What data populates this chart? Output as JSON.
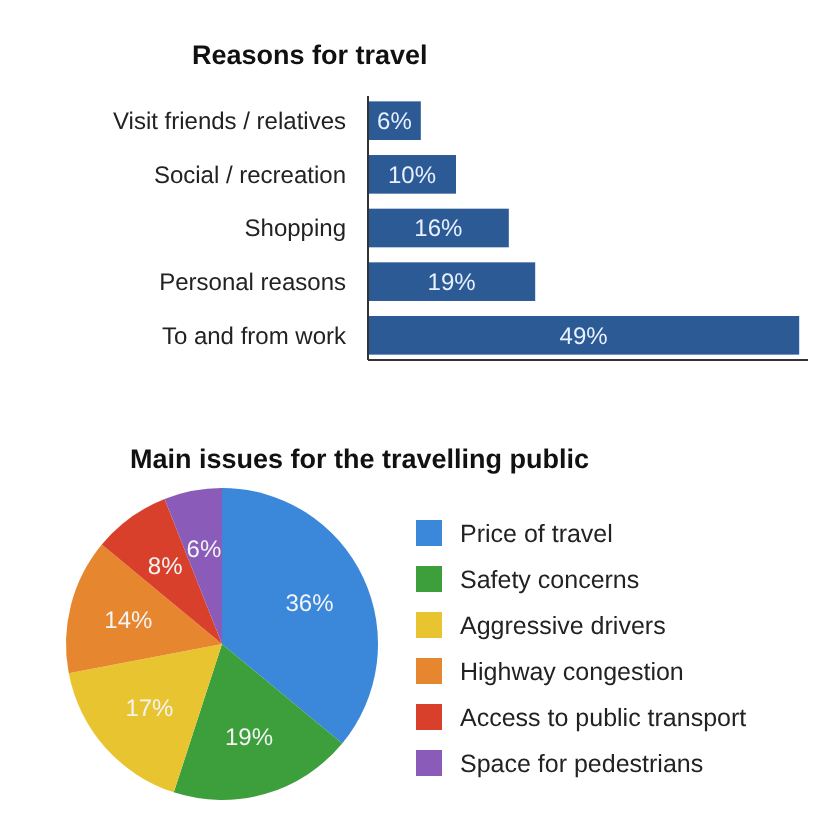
{
  "chart_data": [
    {
      "type": "bar",
      "orientation": "horizontal",
      "title": "Reasons for travel",
      "categories": [
        "Visit friends / relatives",
        "Social / recreation",
        "Shopping",
        "Personal reasons",
        "To and from work"
      ],
      "values": [
        6,
        10,
        16,
        19,
        49
      ],
      "value_labels": [
        "6%",
        "10%",
        "16%",
        "19%",
        "49%"
      ],
      "color": "#2c5a94",
      "xlim": [
        0,
        50
      ]
    },
    {
      "type": "pie",
      "title": "Main issues for the travelling public",
      "categories": [
        "Price of travel",
        "Safety concerns",
        "Aggressive drivers",
        "Highway congestion",
        "Access to public transport",
        "Space for pedestrians"
      ],
      "values": [
        36,
        19,
        17,
        14,
        8,
        6
      ],
      "value_labels": [
        "36%",
        "19%",
        "17%",
        "14%",
        "8%",
        "6%"
      ],
      "colors": [
        "#3b87d9",
        "#3d9e3c",
        "#e8c530",
        "#e6862e",
        "#d9402c",
        "#8a5bb8"
      ],
      "legend": "right"
    }
  ]
}
